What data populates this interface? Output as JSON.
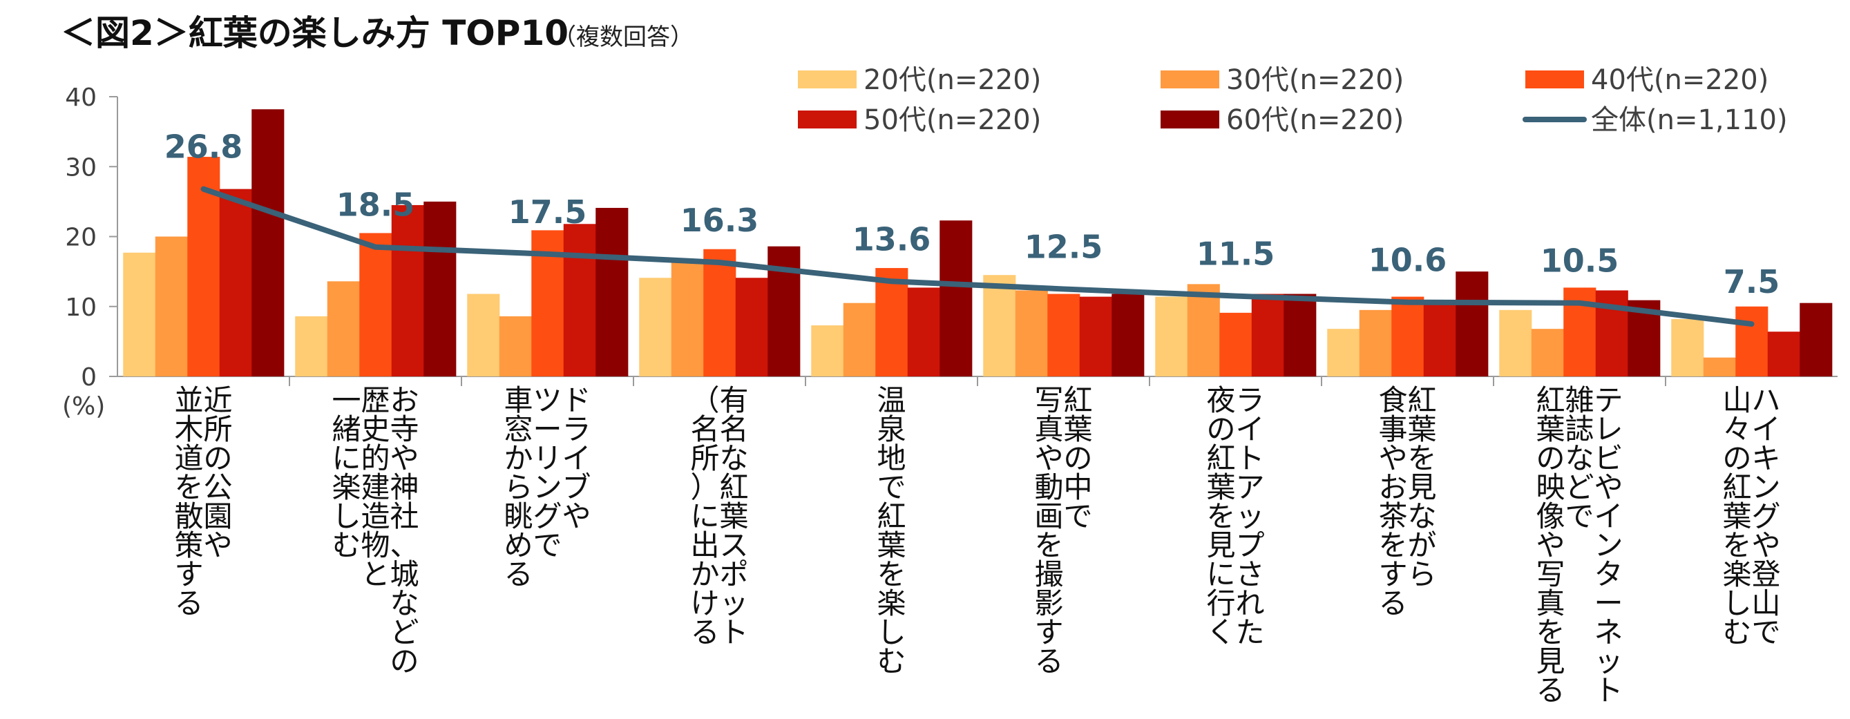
{
  "title": "＜図2＞紅葉の楽しみ方 TOP10",
  "subtitle": "（複数回答）",
  "chart_data": {
    "type": "bar",
    "unit_label": "(%)",
    "ylim": [
      0,
      40
    ],
    "yticks": [
      "0",
      "10",
      "20",
      "30",
      "40"
    ],
    "grid": false,
    "legend_position": "top-right",
    "categories": [
      [
        "近所の公園や",
        "並木道を散策する"
      ],
      [
        "お寺や神社、城などの",
        "歴史的建造物と",
        "一緒に楽しむ"
      ],
      [
        "ドライブや",
        "ツーリングで",
        "車窓から眺める"
      ],
      [
        "有名な紅葉スポット",
        "（名所）に出かける"
      ],
      [
        "温泉地で紅葉を楽しむ"
      ],
      [
        "紅葉の中で",
        "写真や動画を撮影する"
      ],
      [
        "ライトアップされた",
        "夜の紅葉を見に行く"
      ],
      [
        "紅葉を見ながら",
        "食事やお茶をする"
      ],
      [
        "テレビやインターネット、",
        "雑誌などで",
        "紅葉の映像や写真を見る"
      ],
      [
        "ハイキングや登山で",
        "山々の紅葉を楽しむ"
      ]
    ],
    "series": [
      {
        "name": "20代(n=220)",
        "color": "#FFCC73",
        "values": [
          17.7,
          8.6,
          11.8,
          14.1,
          7.3,
          14.5,
          11.4,
          6.8,
          9.5,
          8.2
        ]
      },
      {
        "name": "30代(n=220)",
        "color": "#FF9A40",
        "values": [
          20.0,
          13.6,
          8.6,
          16.4,
          10.5,
          12.3,
          13.2,
          9.5,
          6.8,
          2.7
        ]
      },
      {
        "name": "40代(n=220)",
        "color": "#FF4E12",
        "values": [
          31.4,
          20.5,
          20.9,
          18.2,
          15.5,
          11.8,
          9.1,
          11.4,
          12.7,
          10.0
        ]
      },
      {
        "name": "50代(n=220)",
        "color": "#CC1407",
        "values": [
          26.8,
          24.5,
          21.8,
          14.1,
          12.7,
          11.4,
          11.8,
          10.5,
          12.3,
          6.4
        ]
      },
      {
        "name": "60代(n=220)",
        "color": "#8C0000",
        "values": [
          38.2,
          25.0,
          24.1,
          18.6,
          22.3,
          11.8,
          11.8,
          15.0,
          10.9,
          10.5
        ]
      }
    ],
    "line_series": {
      "name": "全体(n=1,110)",
      "color": "#3A6278",
      "values": [
        26.8,
        18.5,
        17.5,
        16.3,
        13.6,
        12.5,
        11.5,
        10.6,
        10.5,
        7.5
      ]
    },
    "line_labels": [
      "26.8",
      "18.5",
      "17.5",
      "16.3",
      "13.6",
      "12.5",
      "11.5",
      "10.6",
      "10.5",
      "7.5"
    ]
  }
}
